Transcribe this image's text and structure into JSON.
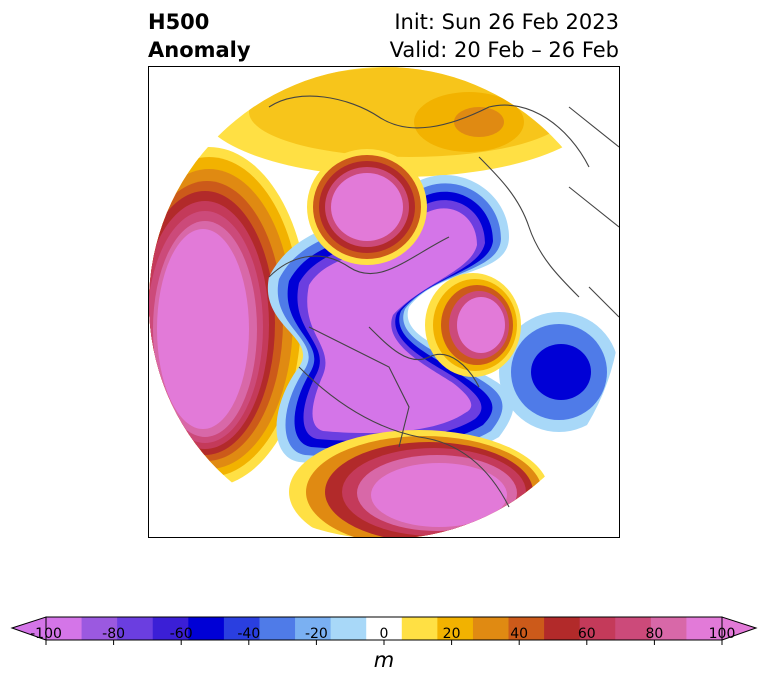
{
  "header": {
    "title_line1": "H500",
    "title_line2": "Anomaly",
    "init_text": "Init: Sun 26 Feb 2023",
    "valid_text": "Valid: 20 Feb – 26 Feb"
  },
  "colorbar": {
    "unit": "m",
    "ticks": [
      "-100",
      "-80",
      "-60",
      "-40",
      "-20",
      "0",
      "20",
      "40",
      "60",
      "80",
      "100"
    ],
    "levels": [
      -100,
      -90,
      -80,
      -70,
      -60,
      -50,
      -40,
      -30,
      -20,
      -10,
      10,
      20,
      30,
      40,
      50,
      60,
      70,
      80,
      90,
      100
    ],
    "colors": [
      "#d475e8",
      "#9b59e0",
      "#6b3ee0",
      "#3b1fd6",
      "#0000d6",
      "#2a3fe0",
      "#4f7be8",
      "#7ab0f2",
      "#a8d8f8",
      "#ffffff",
      "#ffe044",
      "#f2b200",
      "#e08a12",
      "#cc5a1a",
      "#b22a2a",
      "#c43a5a",
      "#cc4a7a",
      "#d868a8",
      "#e27ad8"
    ],
    "under_color": "#d475e8",
    "over_color": "#e27ad8"
  }
}
